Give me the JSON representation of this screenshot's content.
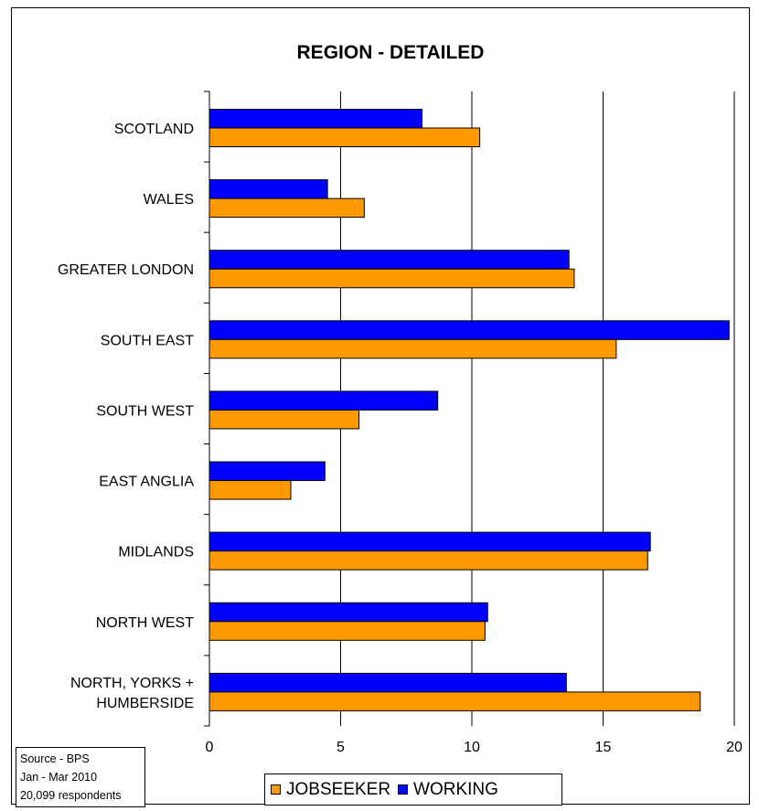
{
  "chart_data": {
    "type": "bar",
    "orientation": "horizontal",
    "title": "REGION - DETAILED",
    "xlabel": "",
    "ylabel": "",
    "categories": [
      [
        "SCOTLAND"
      ],
      [
        "WALES"
      ],
      [
        "GREATER LONDON"
      ],
      [
        "SOUTH EAST"
      ],
      [
        "SOUTH WEST"
      ],
      [
        "EAST ANGLIA"
      ],
      [
        "MIDLANDS"
      ],
      [
        "NORTH WEST"
      ],
      [
        "NORTH, YORKS +",
        "HUMBERSIDE"
      ]
    ],
    "series": [
      {
        "name": "WORKING",
        "color": "#0000ff",
        "values": [
          8.1,
          4.5,
          13.7,
          19.8,
          8.7,
          4.4,
          16.8,
          10.6,
          13.6
        ]
      },
      {
        "name": "JOBSEEKER",
        "color": "#ff9900",
        "values": [
          10.3,
          5.9,
          13.9,
          15.5,
          5.7,
          3.1,
          16.7,
          10.5,
          18.7
        ]
      }
    ],
    "xlim": [
      0,
      20
    ],
    "xticks": [
      "0",
      "5",
      "10",
      "15",
      "20"
    ],
    "grid": true,
    "legend_position": "bottom",
    "legend_order": [
      "JOBSEEKER",
      "WORKING"
    ]
  },
  "source_note": [
    "Source - BPS",
    "Jan - Mar 2010",
    "20,099 respondents"
  ]
}
